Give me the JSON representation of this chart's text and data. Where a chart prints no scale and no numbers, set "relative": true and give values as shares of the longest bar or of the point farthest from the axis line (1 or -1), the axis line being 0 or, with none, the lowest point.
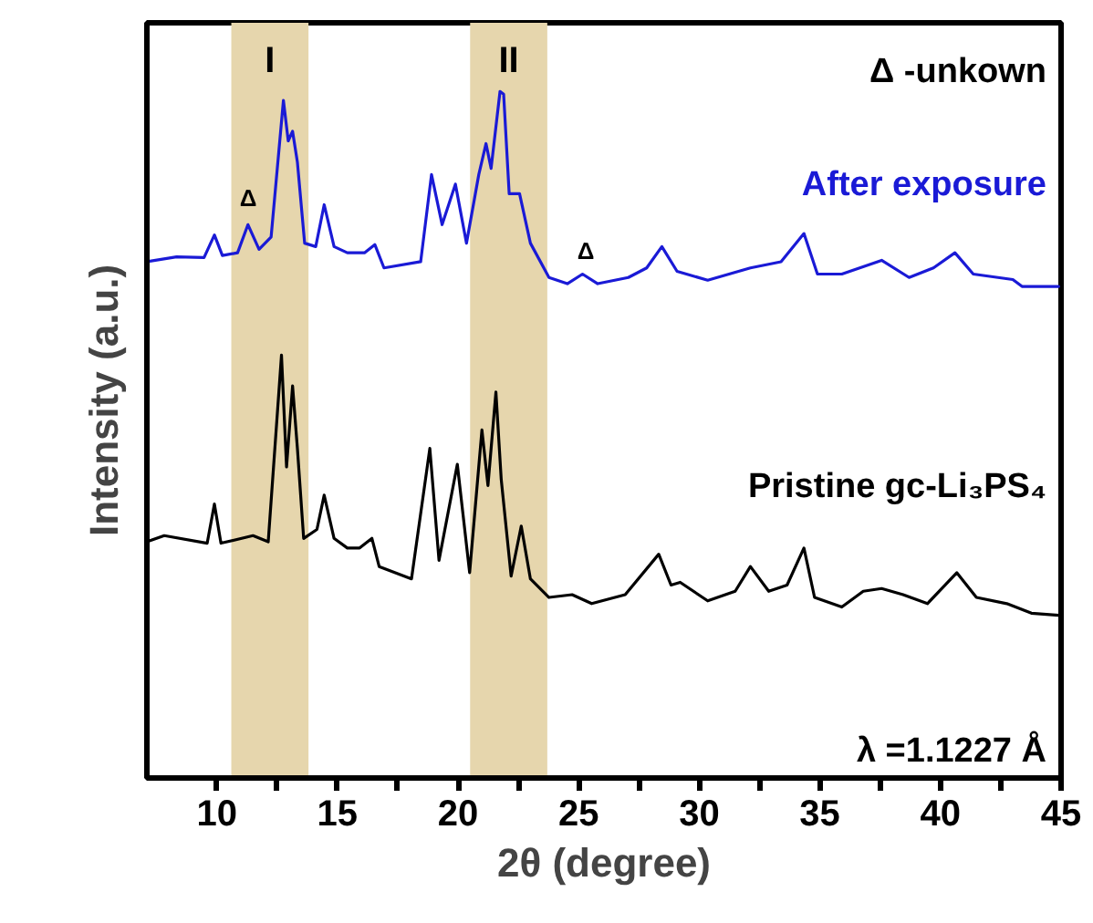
{
  "chart_data": {
    "type": "line",
    "relative": true,
    "xlabel": "2θ (degree)",
    "ylabel": "Intensity (a.u.)",
    "xlim": [
      7.1,
      45
    ],
    "xticks": [
      10,
      {
        "value": 12.5,
        "label": null
      },
      15,
      {
        "value": 17.5,
        "label": null
      },
      20,
      {
        "value": 22.5,
        "label": null
      },
      25,
      {
        "value": 27.5,
        "label": null
      },
      30,
      {
        "value": 32.5,
        "label": null
      },
      35,
      {
        "value": 37.5,
        "label": null
      },
      40,
      {
        "value": 42.5,
        "label": null
      },
      45
    ],
    "tick_labels": "x",
    "grid": false,
    "bands": [
      {
        "axis": "x",
        "from": 10.6,
        "to": 13.8,
        "label": "I",
        "color": "#e6d6ad"
      },
      {
        "axis": "x",
        "from": 20.5,
        "to": 23.7,
        "label": "II",
        "color": "#e6d6ad"
      }
    ],
    "annotations": [
      "Δ -unkown",
      "λ =1.1227 Å",
      "Δ",
      "Δ"
    ],
    "series": [
      {
        "name": "After exposure",
        "color": "#1a1ad6",
        "x": [
          7.1,
          8.33,
          9.47,
          9.9,
          10.23,
          10.86,
          11.29,
          11.75,
          12.25,
          12.76,
          12.96,
          13.14,
          13.34,
          13.64,
          14.1,
          14.45,
          14.86,
          15.41,
          16.12,
          16.55,
          16.93,
          18.45,
          18.9,
          19.34,
          19.89,
          20.35,
          20.86,
          21.16,
          21.37,
          21.74,
          21.89,
          22.12,
          22.55,
          23.0,
          23.77,
          24.53,
          25.16,
          25.79,
          27.06,
          27.82,
          28.45,
          29.08,
          30.35,
          32.12,
          33.39,
          34.34,
          34.9,
          35.91,
          37.56,
          38.7,
          39.71,
          40.6,
          41.36,
          43.0,
          43.38,
          44.9
        ],
        "values": [
          0.752,
          0.759,
          0.758,
          0.791,
          0.761,
          0.765,
          0.806,
          0.77,
          0.788,
          0.987,
          0.928,
          0.942,
          0.897,
          0.779,
          0.774,
          0.835,
          0.774,
          0.765,
          0.765,
          0.777,
          0.743,
          0.752,
          0.879,
          0.806,
          0.865,
          0.779,
          0.879,
          0.924,
          0.888,
          1.0,
          0.996,
          0.851,
          0.851,
          0.779,
          0.729,
          0.72,
          0.734,
          0.72,
          0.729,
          0.743,
          0.774,
          0.738,
          0.725,
          0.743,
          0.752,
          0.793,
          0.734,
          0.734,
          0.754,
          0.729,
          0.743,
          0.765,
          0.734,
          0.726,
          0.716,
          0.716
        ]
      },
      {
        "name": "Pristine gc-Li₃PS₄",
        "color": "#000000",
        "x": [
          7.1,
          7.82,
          9.6,
          9.9,
          10.17,
          11.5,
          12.13,
          12.68,
          12.89,
          13.14,
          13.34,
          13.6,
          14.15,
          14.45,
          14.86,
          15.41,
          15.92,
          16.43,
          16.73,
          18.07,
          18.83,
          19.21,
          19.97,
          20.48,
          20.99,
          21.24,
          21.57,
          21.79,
          22.2,
          22.62,
          23.0,
          23.77,
          24.73,
          25.54,
          26.93,
          28.32,
          28.83,
          29.21,
          30.35,
          31.49,
          32.12,
          32.88,
          33.64,
          34.34,
          34.78,
          35.91,
          36.8,
          37.56,
          38.45,
          39.46,
          40.68,
          41.49,
          42.75,
          43.77,
          44.9
        ],
        "values": [
          0.344,
          0.353,
          0.342,
          0.399,
          0.342,
          0.353,
          0.344,
          0.616,
          0.453,
          0.571,
          0.48,
          0.349,
          0.362,
          0.412,
          0.349,
          0.335,
          0.335,
          0.349,
          0.308,
          0.29,
          0.48,
          0.317,
          0.457,
          0.299,
          0.507,
          0.426,
          0.562,
          0.435,
          0.294,
          0.367,
          0.29,
          0.263,
          0.267,
          0.254,
          0.267,
          0.326,
          0.281,
          0.285,
          0.258,
          0.272,
          0.308,
          0.272,
          0.281,
          0.335,
          0.263,
          0.249,
          0.272,
          0.276,
          0.267,
          0.254,
          0.299,
          0.263,
          0.254,
          0.24,
          0.237
        ]
      }
    ]
  }
}
